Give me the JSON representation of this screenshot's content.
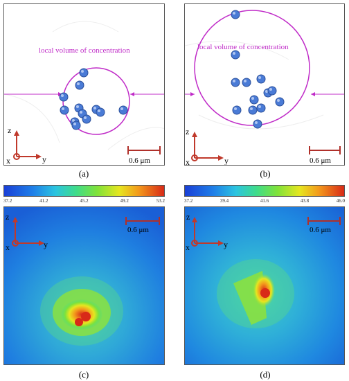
{
  "panels": [
    {
      "caption": "(a)",
      "volume_label": "local volume of concentration",
      "scale_label": "0.6 μm",
      "axes": {
        "z": "z",
        "x": "x",
        "y": "y"
      }
    },
    {
      "caption": "(b)",
      "volume_label": "local volume of concentration",
      "scale_label": "0.6 μm",
      "axes": {
        "z": "z",
        "x": "x",
        "y": "y"
      }
    },
    {
      "caption": "(c)",
      "scale_label": "0.6 μm",
      "colorbar_ticks": [
        "37.2",
        "41.2",
        "45.2",
        "49.2",
        "53.2"
      ],
      "axes": {
        "z": "z",
        "x": "x",
        "y": "y"
      }
    },
    {
      "caption": "(d)",
      "scale_label": "0.6 μm",
      "colorbar_ticks": [
        "37.2",
        "39.4",
        "41.6",
        "43.8",
        "46.0"
      ],
      "axes": {
        "z": "z",
        "x": "x",
        "y": "y"
      }
    }
  ],
  "colors": {
    "circle": "#c02cc8",
    "scale_bar": "#b0302a",
    "axes": "#c0392b",
    "particle": "#4a7bd6"
  }
}
